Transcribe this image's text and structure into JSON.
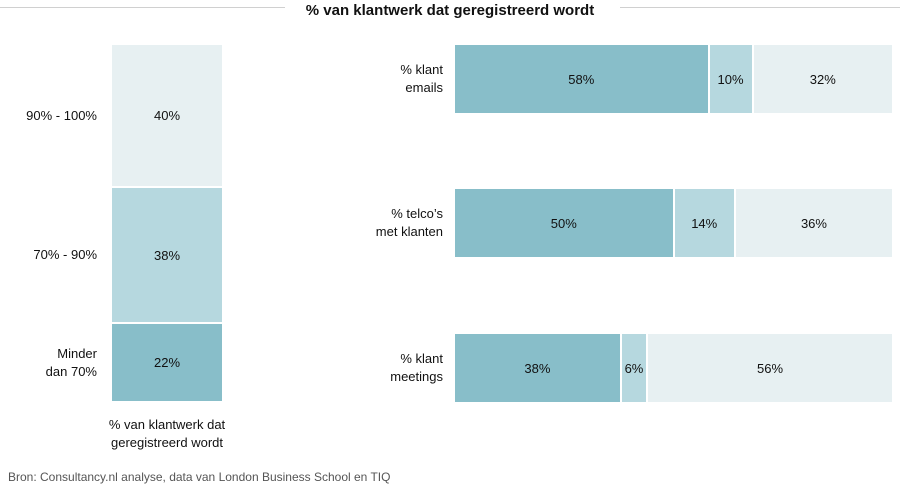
{
  "chart_data": [
    {
      "type": "stacked-bar",
      "orientation": "vertical",
      "title": "% van klantwerk dat geregistreerd wordt",
      "xlabel": "% van klantwerk dat geregistreerd wordt",
      "segments": [
        {
          "label": "Minder dan 70%",
          "value": 22,
          "text": "22%"
        },
        {
          "label": "70% - 90%",
          "value": 38,
          "text": "38%"
        },
        {
          "label": "90% - 100%",
          "value": 40,
          "text": "40%"
        }
      ]
    },
    {
      "type": "stacked-bar",
      "orientation": "horizontal",
      "categories": [
        "% klant emails",
        "% telco's met klanten",
        "% klant meetings"
      ],
      "category_lines": [
        [
          "% klant",
          "emails"
        ],
        [
          "% telco’s",
          "met klanten"
        ],
        [
          "% klant",
          "meetings"
        ]
      ],
      "series": [
        {
          "name": "dark",
          "values": [
            58,
            50,
            38
          ],
          "texts": [
            "58%",
            "50%",
            "38%"
          ]
        },
        {
          "name": "mid",
          "values": [
            10,
            14,
            6
          ],
          "texts": [
            "10%",
            "14%",
            "6%"
          ]
        },
        {
          "name": "light",
          "values": [
            32,
            36,
            56
          ],
          "texts": [
            "32%",
            "36%",
            "56%"
          ]
        }
      ]
    }
  ],
  "title": "% van klantwerk dat geregistreerd wordt",
  "source": "Bron: Consultancy.nl analyse, data van London Business School en TIQ",
  "colors": {
    "dark": "#88bec9",
    "mid": "#b6d8df",
    "light": "#e7f0f2"
  }
}
